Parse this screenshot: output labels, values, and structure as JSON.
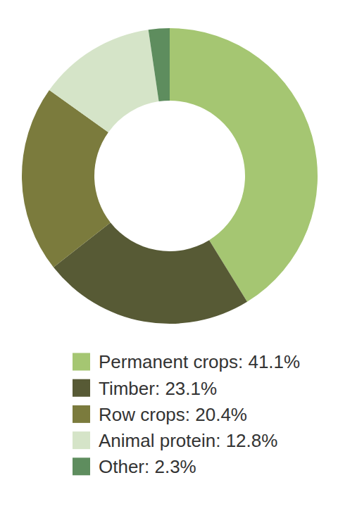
{
  "chart_data": {
    "type": "donut",
    "categories": [
      "Permanent crops: 41.1%",
      "Timber: 23.1%",
      "Row crops: 20.4%",
      "Animal protein: 12.8%",
      "Other: 2.3%"
    ],
    "values": [
      41.1,
      23.1,
      20.4,
      12.8,
      2.3
    ],
    "colors": [
      "#a5c672",
      "#575a35",
      "#7b7b3d",
      "#d5e4c8",
      "#5e8d5e"
    ],
    "legend": "bottom"
  }
}
